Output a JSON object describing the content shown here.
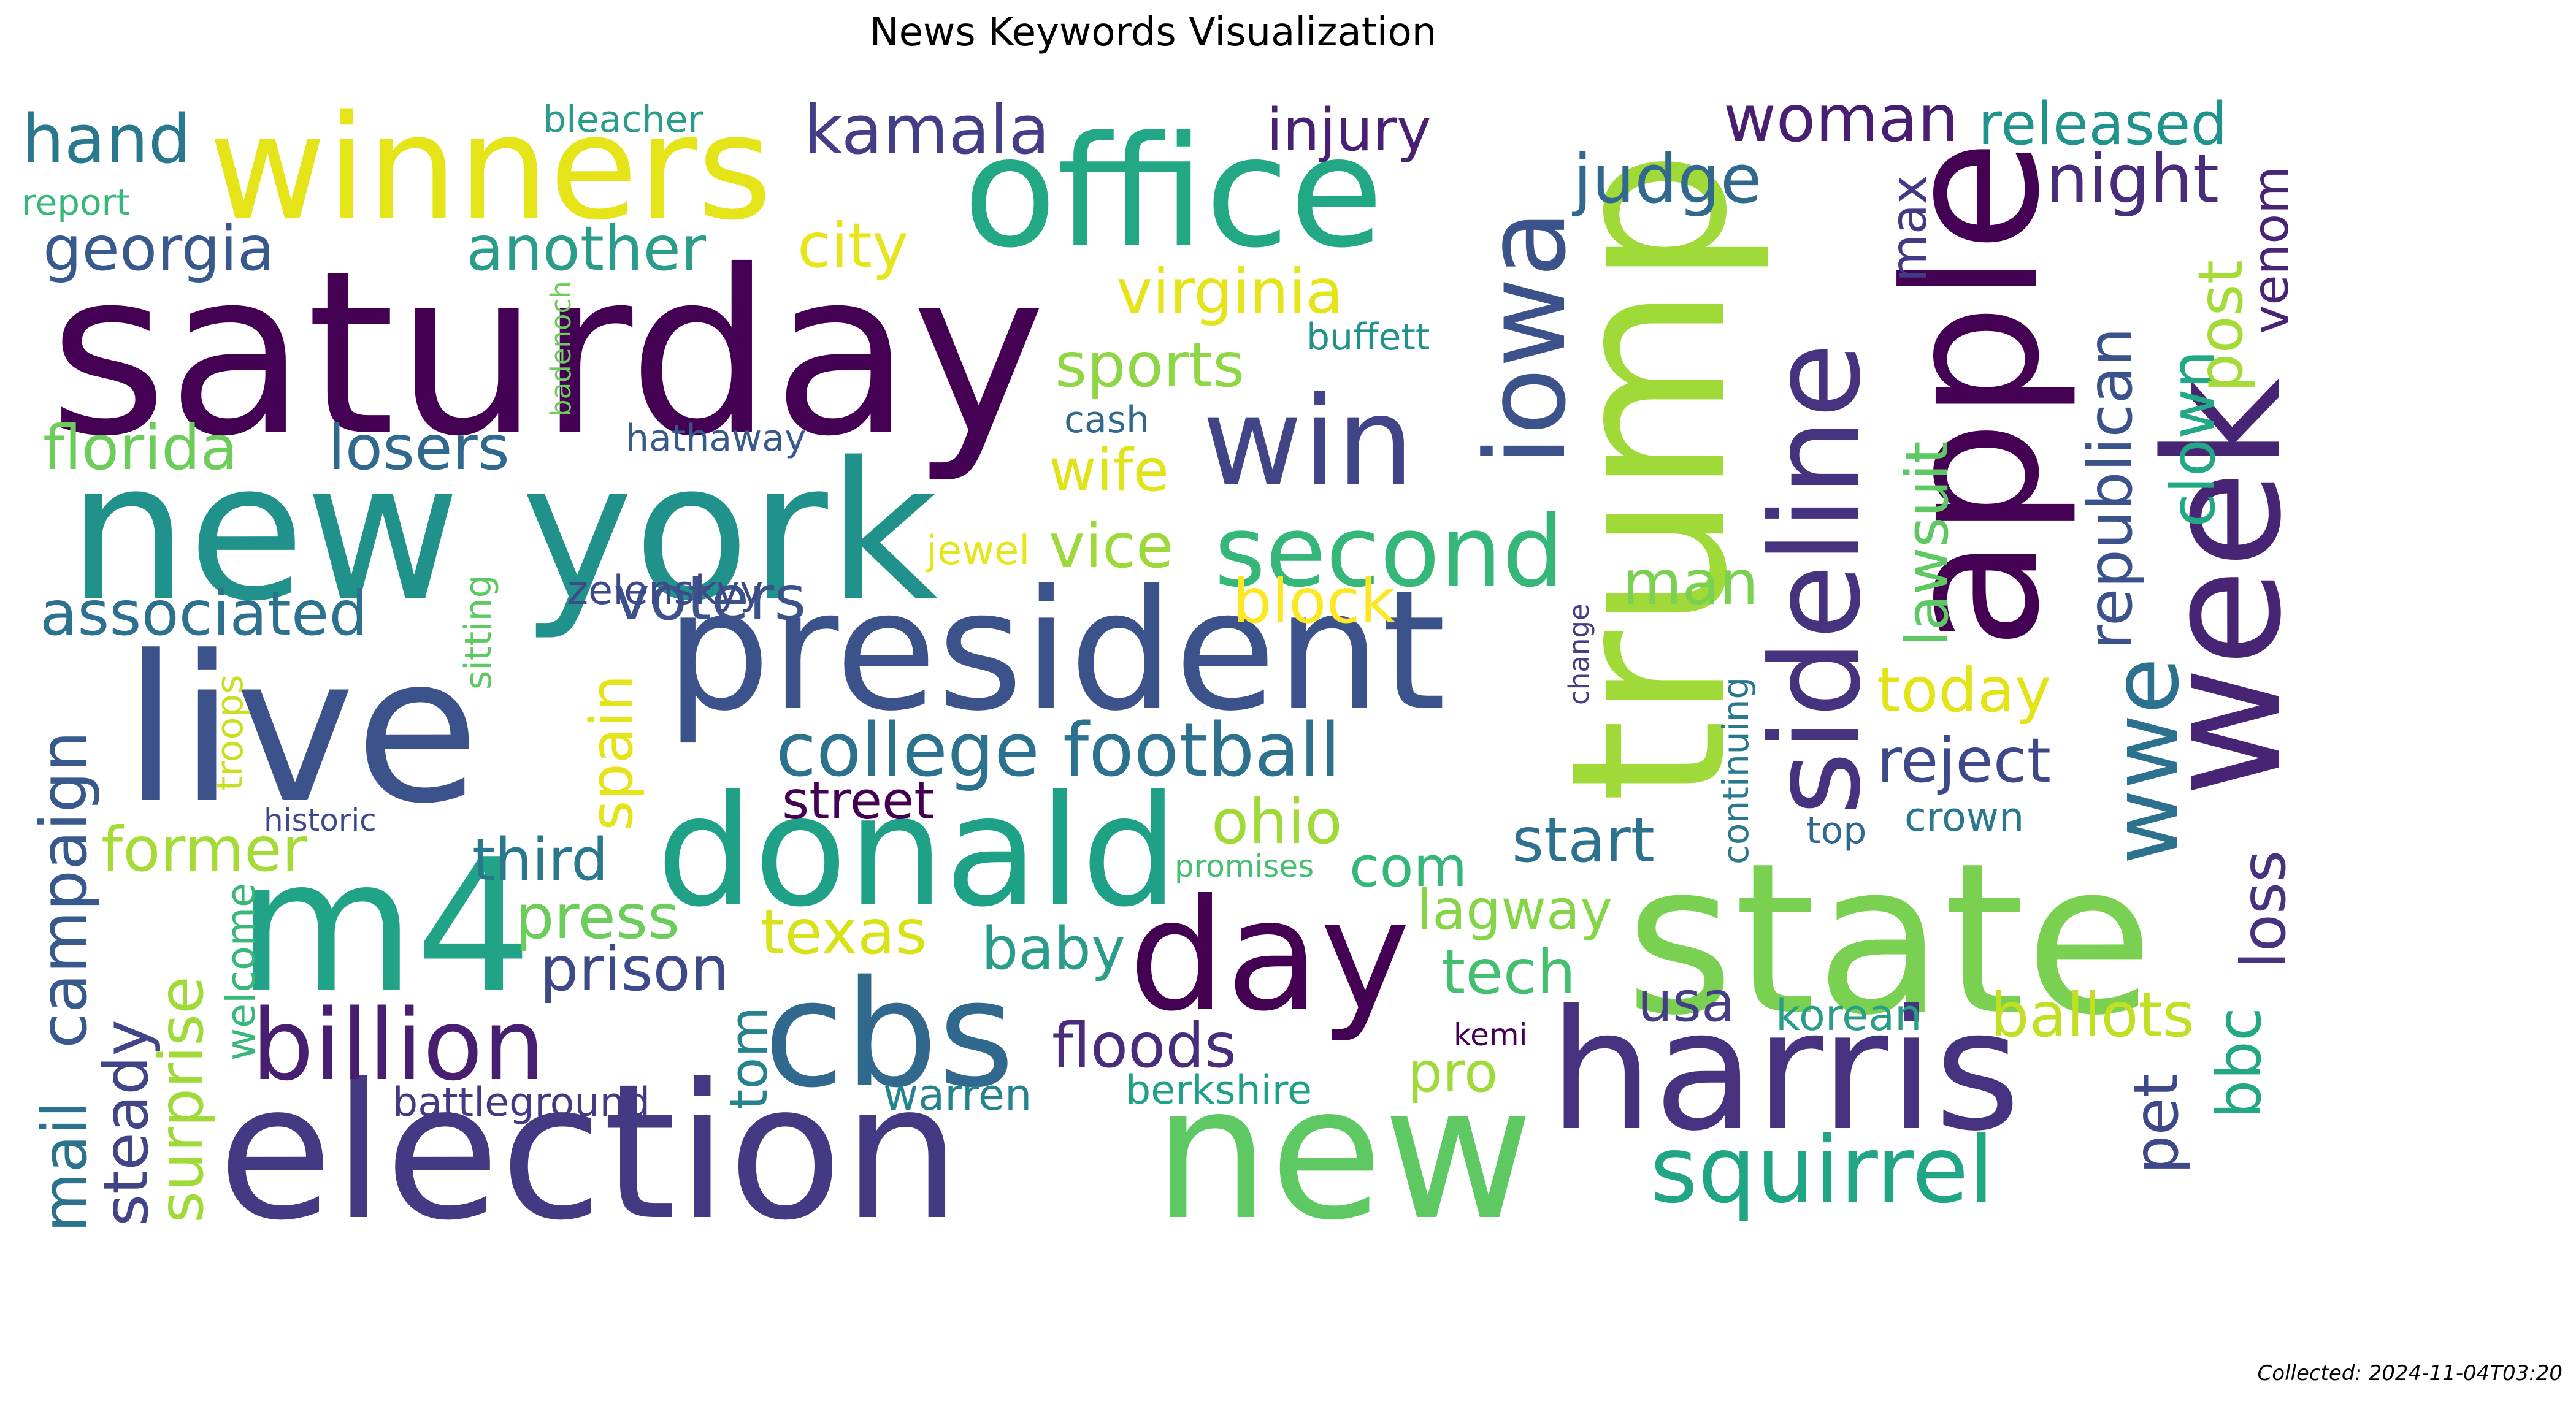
{
  "title": "News Keywords Visualization",
  "footer": "Collected: 2024-11-04T03:20",
  "words": [
    {
      "text": "saturday",
      "color": "#440154"
    },
    {
      "text": "new york",
      "color": "#21918c"
    },
    {
      "text": "live",
      "color": "#3b528b"
    },
    {
      "text": "election",
      "color": "#443983"
    },
    {
      "text": "winners",
      "color": "#e5e419"
    },
    {
      "text": "office",
      "color": "#22a884"
    },
    {
      "text": "president",
      "color": "#3b528b"
    },
    {
      "text": "m4",
      "color": "#20a386"
    },
    {
      "text": "donald",
      "color": "#1fa187"
    },
    {
      "text": "day",
      "color": "#440154"
    },
    {
      "text": "cbs",
      "color": "#31688e"
    },
    {
      "text": "new",
      "color": "#5ec962"
    },
    {
      "text": "state",
      "color": "#7ad151"
    },
    {
      "text": "trump",
      "color": "#a0da39"
    },
    {
      "text": "harris",
      "color": "#46327e"
    },
    {
      "text": "apple",
      "color": "#440154"
    },
    {
      "text": "week",
      "color": "#482475"
    },
    {
      "text": "sideline",
      "color": "#46327e"
    },
    {
      "text": "iowa",
      "color": "#3b528b"
    },
    {
      "text": "win",
      "color": "#414487"
    },
    {
      "text": "second",
      "color": "#35b779"
    },
    {
      "text": "billion",
      "color": "#481f70"
    },
    {
      "text": "college football",
      "color": "#2c728e"
    },
    {
      "text": "squirrel",
      "color": "#21a685"
    },
    {
      "text": "kamala",
      "color": "#433e85"
    },
    {
      "text": "hand",
      "color": "#2a788e"
    },
    {
      "text": "georgia",
      "color": "#38598c"
    },
    {
      "text": "another",
      "color": "#2a9d8a"
    },
    {
      "text": "city",
      "color": "#e7e419"
    },
    {
      "text": "injury",
      "color": "#482173"
    },
    {
      "text": "virginia",
      "color": "#e5e419"
    },
    {
      "text": "sports",
      "color": "#8ed645"
    },
    {
      "text": "florida",
      "color": "#6ccd5a"
    },
    {
      "text": "losers",
      "color": "#31688e"
    },
    {
      "text": "wife",
      "color": "#dfe318"
    },
    {
      "text": "vice",
      "color": "#9dd93b"
    },
    {
      "text": "associated",
      "color": "#2c728e"
    },
    {
      "text": "voters",
      "color": "#3b528b"
    },
    {
      "text": "block",
      "color": "#fde725"
    },
    {
      "text": "man",
      "color": "#7ad151"
    },
    {
      "text": "woman",
      "color": "#481f70"
    },
    {
      "text": "judge",
      "color": "#31688e"
    },
    {
      "text": "released",
      "color": "#20938c"
    },
    {
      "text": "night",
      "color": "#472d7b"
    },
    {
      "text": "max",
      "color": "#443983"
    },
    {
      "text": "venom",
      "color": "#482475"
    },
    {
      "text": "republican",
      "color": "#3b528b"
    },
    {
      "text": "clown",
      "color": "#22a884"
    },
    {
      "text": "post",
      "color": "#a5db36"
    },
    {
      "text": "lawsuit",
      "color": "#5ec962"
    },
    {
      "text": "today",
      "color": "#e2e418"
    },
    {
      "text": "reject",
      "color": "#3e4989"
    },
    {
      "text": "wwe",
      "color": "#2c728e"
    },
    {
      "text": "loss",
      "color": "#46327e"
    },
    {
      "text": "pet",
      "color": "#3e4989"
    },
    {
      "text": "bbc",
      "color": "#22a884"
    },
    {
      "text": "ballots",
      "color": "#c2df23"
    },
    {
      "text": "usa",
      "color": "#433e85"
    },
    {
      "text": "korean",
      "color": "#2a9d8a"
    },
    {
      "text": "crown",
      "color": "#2a788e"
    },
    {
      "text": "top",
      "color": "#31688e"
    },
    {
      "text": "start",
      "color": "#2c728e"
    },
    {
      "text": "ohio",
      "color": "#a0da39"
    },
    {
      "text": "com",
      "color": "#35b779"
    },
    {
      "text": "lagway",
      "color": "#86d549"
    },
    {
      "text": "tech",
      "color": "#44bf70"
    },
    {
      "text": "pro",
      "color": "#a0da39"
    },
    {
      "text": "kemi",
      "color": "#440154"
    },
    {
      "text": "floods",
      "color": "#472d7b"
    },
    {
      "text": "berkshire",
      "color": "#1fa187"
    },
    {
      "text": "warren",
      "color": "#25838e"
    },
    {
      "text": "baby",
      "color": "#2a9d8a"
    },
    {
      "text": "texas",
      "color": "#d8e219"
    },
    {
      "text": "prison",
      "color": "#3e4989"
    },
    {
      "text": "press",
      "color": "#6ccd5a"
    },
    {
      "text": "third",
      "color": "#2a788e"
    },
    {
      "text": "street",
      "color": "#440154"
    },
    {
      "text": "former",
      "color": "#a5db36"
    },
    {
      "text": "campaign",
      "color": "#38598c"
    },
    {
      "text": "mail",
      "color": "#2c728e"
    },
    {
      "text": "steady",
      "color": "#414487"
    },
    {
      "text": "surprise",
      "color": "#a0da39"
    },
    {
      "text": "welcome",
      "color": "#37b878"
    },
    {
      "text": "historic",
      "color": "#3e4989"
    },
    {
      "text": "troops",
      "color": "#c8e020"
    },
    {
      "text": "sitting",
      "color": "#5ec962"
    },
    {
      "text": "spain",
      "color": "#e5e419"
    },
    {
      "text": "zelenskyy",
      "color": "#3e4989"
    },
    {
      "text": "jewel",
      "color": "#e7e419"
    },
    {
      "text": "hathaway",
      "color": "#38598c"
    },
    {
      "text": "cash",
      "color": "#31688e"
    },
    {
      "text": "buffett",
      "color": "#21918c"
    },
    {
      "text": "badenoch",
      "color": "#6ccd5a"
    },
    {
      "text": "bleacher",
      "color": "#2a9d8a"
    },
    {
      "text": "report",
      "color": "#35b779"
    },
    {
      "text": "battleground",
      "color": "#443983"
    },
    {
      "text": "tom",
      "color": "#25838e"
    },
    {
      "text": "promises",
      "color": "#44bf70"
    },
    {
      "text": "change",
      "color": "#433e85"
    },
    {
      "text": "continuing",
      "color": "#2a788e"
    }
  ]
}
